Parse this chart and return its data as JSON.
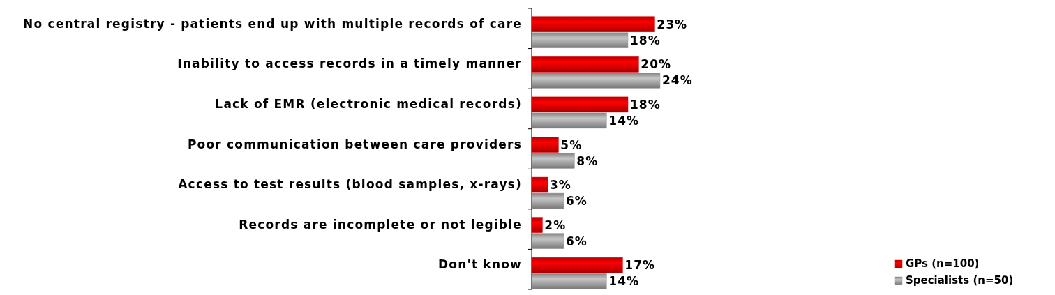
{
  "chart_data": {
    "type": "bar",
    "orientation": "horizontal",
    "categories": [
      "No central registry - patients end up with multiple records of care",
      "Inability to access records in a timely manner",
      "Lack of EMR (electronic medical records)",
      "Poor communication between care providers",
      "Access to test results (blood samples, x-rays)",
      "Records are incomplete or not legible",
      "Don't know"
    ],
    "series": [
      {
        "name": "GPs (n=100)",
        "color": "#e00000",
        "values": [
          23,
          20,
          18,
          5,
          3,
          2,
          17
        ],
        "value_labels": [
          "23%",
          "20%",
          "18%",
          "5%",
          "3%",
          "2%",
          "17%"
        ]
      },
      {
        "name": "Specialists (n=50)",
        "color": "#a0a0a0",
        "values": [
          18,
          24,
          14,
          8,
          6,
          6,
          14
        ],
        "value_labels": [
          "18%",
          "24%",
          "14%",
          "8%",
          "6%",
          "6%",
          "14%"
        ]
      }
    ],
    "legend": "bottom right"
  }
}
